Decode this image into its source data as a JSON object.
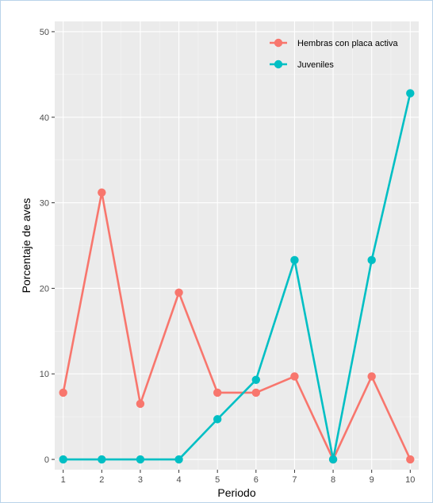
{
  "chart_data": {
    "type": "line",
    "title": "",
    "xlabel": "Periodo",
    "ylabel": "Porcentaje de aves",
    "x": [
      1,
      2,
      3,
      4,
      5,
      6,
      7,
      8,
      9,
      10
    ],
    "xlim": [
      0.78,
      10.22
    ],
    "ylim": [
      -1.2,
      51.2
    ],
    "yticks": [
      0,
      10,
      20,
      30,
      40,
      50
    ],
    "grid": true,
    "legend_position": "top-right",
    "series": [
      {
        "name": "Hembras con placa activa",
        "color": "#F8766D",
        "values": [
          7.8,
          31.2,
          6.5,
          19.5,
          7.8,
          7.8,
          9.7,
          0,
          9.7,
          0
        ]
      },
      {
        "name": "Juveniles",
        "color": "#00BFC4",
        "values": [
          0,
          0,
          0,
          0,
          4.7,
          9.3,
          23.3,
          0,
          23.3,
          42.8
        ]
      }
    ]
  }
}
